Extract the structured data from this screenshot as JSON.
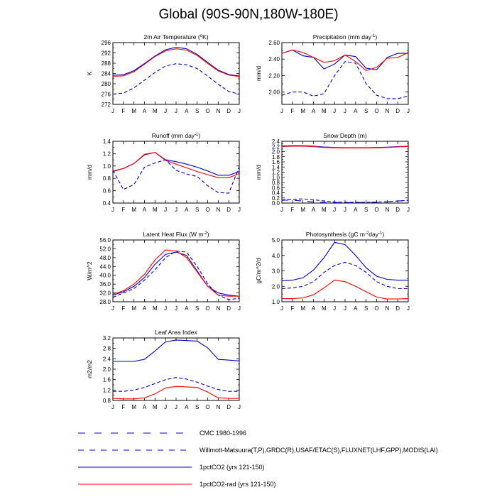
{
  "title": "Global (90S-90N,180W-180E)",
  "colors": {
    "cmc": "#0000cc",
    "obs": "#0000cc",
    "co2": "#0000cc",
    "rad": "#ff0000"
  },
  "legend": [
    {
      "label": "CMC 1980-1996",
      "color": "#0000cc",
      "style": "long-dash"
    },
    {
      "label": "Willmott-Matsuura(T,P),GRDC(R),USAF/ETAC(S),FLUXNET(LHF,GPP),MODIS(LAI)",
      "color": "#0000cc",
      "style": "dash"
    },
    {
      "label": "1pctCO2 (yrs 121-150)",
      "color": "#0000cc",
      "style": "solid"
    },
    {
      "label": "1pctCO2-rad (yrs 121-150)",
      "color": "#ff0000",
      "style": "solid"
    }
  ],
  "chart_data": [
    {
      "type": "line",
      "title": {
        "pre": "2m Air Temperature (",
        "sup": "o",
        "post": "K)"
      },
      "ylabel": "K",
      "categories": [
        "J",
        "F",
        "M",
        "A",
        "M",
        "J",
        "J",
        "A",
        "S",
        "O",
        "N",
        "D",
        "J"
      ],
      "ylim": [
        272,
        296
      ],
      "yticks": [
        "272",
        "276",
        "280",
        "284",
        "288",
        "292",
        "296"
      ],
      "series": [
        {
          "key": "obs",
          "color": "#0000cc",
          "dash": "dash",
          "values": [
            276.0,
            276.4,
            278.4,
            281.4,
            284.4,
            286.9,
            287.8,
            287.4,
            285.9,
            283.0,
            279.8,
            277.0,
            276.0
          ]
        },
        {
          "key": "co2",
          "color": "#0000cc",
          "dash": "solid",
          "values": [
            283.3,
            283.5,
            285.1,
            287.9,
            290.8,
            293.2,
            294.2,
            293.6,
            291.4,
            288.3,
            285.3,
            283.6,
            283.0
          ]
        },
        {
          "key": "rad",
          "color": "#ff0000",
          "dash": "solid",
          "values": [
            282.9,
            283.1,
            284.7,
            287.6,
            290.6,
            292.8,
            293.6,
            293.1,
            291.0,
            287.9,
            285.0,
            283.4,
            282.8
          ]
        }
      ]
    },
    {
      "type": "line",
      "title": {
        "pre": "Precipitation (mm day",
        "sup": "-1",
        "post": ")"
      },
      "ylabel": "mm/d",
      "categories": [
        "J",
        "F",
        "M",
        "A",
        "M",
        "J",
        "J",
        "A",
        "S",
        "O",
        "N",
        "D",
        "J"
      ],
      "ylim": [
        1.85,
        2.6
      ],
      "yticks": [
        "2.00",
        "2.20",
        "2.40",
        "2.60"
      ],
      "tickvals": [
        2.0,
        2.2,
        2.4,
        2.6
      ],
      "series": [
        {
          "key": "obs",
          "color": "#0000cc",
          "dash": "dash",
          "values": [
            1.96,
            2.0,
            2.0,
            1.95,
            1.98,
            2.2,
            2.37,
            2.35,
            2.1,
            1.96,
            1.92,
            1.92,
            1.95
          ]
        },
        {
          "key": "co2",
          "color": "#0000cc",
          "dash": "solid",
          "values": [
            2.47,
            2.51,
            2.44,
            2.42,
            2.28,
            2.34,
            2.45,
            2.43,
            2.29,
            2.27,
            2.42,
            2.47,
            2.47
          ]
        },
        {
          "key": "rad",
          "color": "#ff0000",
          "dash": "solid",
          "values": [
            2.47,
            2.51,
            2.48,
            2.42,
            2.36,
            2.38,
            2.45,
            2.37,
            2.26,
            2.3,
            2.41,
            2.42,
            2.48
          ]
        }
      ]
    },
    {
      "type": "line",
      "title": {
        "pre": "Runoff (mm day",
        "sup": "-1",
        "post": ")"
      },
      "ylabel": "mm/d",
      "categories": [
        "J",
        "F",
        "M",
        "A",
        "M",
        "J",
        "J",
        "A",
        "S",
        "O",
        "N",
        "D",
        "J"
      ],
      "ylim": [
        0.4,
        1.4
      ],
      "yticks": [
        "0.4",
        "0.6",
        "0.8",
        "1.0",
        "1.2",
        "1.4"
      ],
      "series": [
        {
          "key": "obs",
          "color": "#0000cc",
          "dash": "dash",
          "values": [
            0.93,
            0.62,
            0.7,
            0.98,
            1.05,
            1.1,
            0.93,
            0.87,
            0.83,
            0.68,
            0.57,
            0.56,
            0.99
          ]
        },
        {
          "key": "co2",
          "color": "#0000cc",
          "dash": "solid",
          "values": [
            0.91,
            0.96,
            1.04,
            1.18,
            1.22,
            1.1,
            1.07,
            1.03,
            0.98,
            0.92,
            0.85,
            0.85,
            0.91
          ]
        },
        {
          "key": "rad",
          "color": "#ff0000",
          "dash": "solid",
          "values": [
            0.92,
            0.96,
            1.04,
            1.19,
            1.22,
            1.09,
            1.03,
            0.97,
            0.91,
            0.86,
            0.81,
            0.81,
            0.88
          ]
        }
      ]
    },
    {
      "type": "line",
      "title": {
        "pre": "Snow Depth (m)",
        "sup": "",
        "post": ""
      },
      "ylabel": "mm/d",
      "categories": [
        "J",
        "F",
        "M",
        "A",
        "M",
        "J",
        "J",
        "A",
        "S",
        "O",
        "N",
        "D",
        "J"
      ],
      "ylim": [
        0.0,
        2.4
      ],
      "yticks": [
        "0.0",
        "0.2",
        "0.4",
        "0.6",
        "0.8",
        "1.0",
        "1.2",
        "1.4",
        "1.6",
        "1.8",
        "2.0",
        "2.2",
        "2.4"
      ],
      "series": [
        {
          "key": "cmc",
          "color": "#0000cc",
          "dash": "longdash",
          "values": [
            0.11,
            0.11,
            0.08,
            0.04,
            0.02,
            0.02,
            0.02,
            0.02,
            0.02,
            0.03,
            0.05,
            0.08,
            0.1
          ]
        },
        {
          "key": "obs",
          "color": "#0000cc",
          "dash": "dash",
          "values": [
            0.12,
            0.15,
            0.16,
            0.13,
            0.08,
            0.04,
            0.03,
            0.03,
            0.03,
            0.04,
            0.05,
            0.08,
            0.11
          ]
        },
        {
          "key": "co2",
          "color": "#0000cc",
          "dash": "solid",
          "values": [
            2.22,
            2.23,
            2.23,
            2.21,
            2.18,
            2.16,
            2.15,
            2.15,
            2.15,
            2.16,
            2.17,
            2.19,
            2.21
          ]
        },
        {
          "key": "rad",
          "color": "#ff0000",
          "dash": "solid",
          "values": [
            2.2,
            2.21,
            2.21,
            2.19,
            2.16,
            2.15,
            2.14,
            2.14,
            2.14,
            2.15,
            2.16,
            2.18,
            2.2
          ]
        }
      ]
    },
    {
      "type": "line",
      "title": {
        "pre": "Latent Heat Flux (W m",
        "sup": "-2",
        "post": ")"
      },
      "ylabel": "W/m^2",
      "categories": [
        "J",
        "F",
        "M",
        "A",
        "M",
        "J",
        "J",
        "A",
        "S",
        "O",
        "N",
        "D",
        "J"
      ],
      "ylim": [
        28.0,
        56.0
      ],
      "yticks": [
        "28.0",
        "32.0",
        "36.0",
        "40.0",
        "44.0",
        "48.0",
        "52.0",
        "56.0"
      ],
      "series": [
        {
          "key": "obs",
          "color": "#0000cc",
          "dash": "dash",
          "values": [
            30.0,
            32.0,
            34.0,
            37.8,
            42.5,
            48.0,
            51.0,
            50.5,
            44.0,
            36.0,
            31.0,
            29.0,
            29.5
          ]
        },
        {
          "key": "co2",
          "color": "#0000cc",
          "dash": "solid",
          "values": [
            31.0,
            32.5,
            35.0,
            39.0,
            45.0,
            49.5,
            50.5,
            49.0,
            42.0,
            35.0,
            32.0,
            31.0,
            30.5
          ]
        },
        {
          "key": "rad",
          "color": "#ff0000",
          "dash": "solid",
          "values": [
            31.5,
            33.0,
            36.0,
            40.5,
            47.0,
            51.5,
            51.0,
            48.0,
            41.5,
            35.0,
            31.0,
            30.5,
            30.5
          ]
        }
      ]
    },
    {
      "type": "line",
      "title": {
        "pre": "Photosynthesis (gC m",
        "sup": "-2",
        "post": "day",
        "sup2": "-1",
        "post2": ")"
      },
      "ylabel": "gC/m^2/d",
      "categories": [
        "J",
        "F",
        "M",
        "A",
        "M",
        "J",
        "J",
        "A",
        "S",
        "O",
        "N",
        "D",
        "J"
      ],
      "ylim": [
        1.0,
        5.0
      ],
      "yticks": [
        "1.0",
        "2.0",
        "3.0",
        "4.0",
        "5.0"
      ],
      "series": [
        {
          "key": "obs",
          "color": "#0000cc",
          "dash": "dash",
          "values": [
            1.85,
            1.9,
            2.0,
            2.3,
            2.9,
            3.35,
            3.55,
            3.35,
            2.9,
            2.3,
            2.0,
            1.85,
            1.85
          ]
        },
        {
          "key": "co2",
          "color": "#0000cc",
          "dash": "solid",
          "values": [
            2.35,
            2.4,
            2.55,
            3.05,
            3.85,
            4.85,
            4.7,
            4.0,
            3.2,
            2.65,
            2.45,
            2.4,
            2.4
          ]
        },
        {
          "key": "rad",
          "color": "#ff0000",
          "dash": "solid",
          "values": [
            1.2,
            1.2,
            1.25,
            1.45,
            1.9,
            2.4,
            2.3,
            2.0,
            1.65,
            1.3,
            1.18,
            1.18,
            1.2
          ]
        }
      ]
    },
    {
      "type": "line",
      "title": {
        "pre": "Leaf Area Index",
        "sup": "",
        "post": ""
      },
      "ylabel": "m2/m2",
      "categories": [
        "J",
        "F",
        "M",
        "A",
        "M",
        "J",
        "J",
        "A",
        "S",
        "O",
        "N",
        "D",
        "J"
      ],
      "ylim": [
        0.8,
        3.2
      ],
      "yticks": [
        "0.8",
        "1.2",
        "1.6",
        "2.0",
        "2.4",
        "2.8",
        "3.2"
      ],
      "series": [
        {
          "key": "obs",
          "color": "#0000cc",
          "dash": "dash",
          "values": [
            1.15,
            1.15,
            1.2,
            1.3,
            1.45,
            1.6,
            1.68,
            1.62,
            1.5,
            1.35,
            1.22,
            1.15,
            1.15
          ]
        },
        {
          "key": "co2",
          "color": "#0000cc",
          "dash": "solid",
          "values": [
            2.3,
            2.3,
            2.3,
            2.38,
            2.7,
            3.05,
            3.12,
            3.1,
            3.08,
            2.82,
            2.38,
            2.35,
            2.32
          ]
        },
        {
          "key": "rad",
          "color": "#ff0000",
          "dash": "solid",
          "values": [
            0.88,
            0.86,
            0.86,
            0.9,
            1.05,
            1.28,
            1.34,
            1.32,
            1.3,
            1.12,
            0.9,
            0.88,
            0.88
          ]
        }
      ]
    }
  ]
}
